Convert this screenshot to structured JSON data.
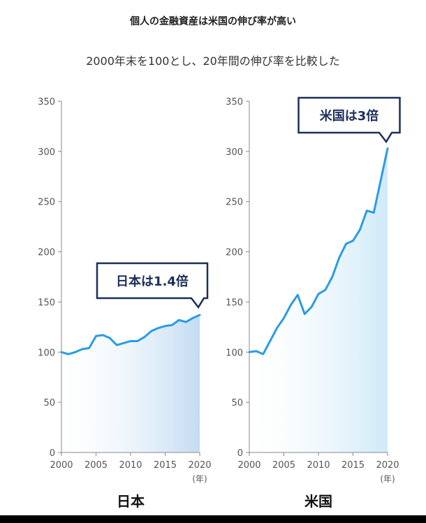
{
  "title": "個人の金融資産は米国の伸び率が高い",
  "subtitle": "2000年末を100とし、20年間の伸び率を比較した",
  "unit_note": "(年)",
  "colors": {
    "line": "#2b9be6",
    "callout_border": "#1b2f5a",
    "fill_japan": "#c3dcf2",
    "fill_us": "#cfeaf8"
  },
  "chart_data": [
    {
      "type": "area",
      "name": "日本",
      "callout": "日本は1.4倍",
      "x": [
        2000,
        2001,
        2002,
        2003,
        2004,
        2005,
        2006,
        2007,
        2008,
        2009,
        2010,
        2011,
        2012,
        2013,
        2014,
        2015,
        2016,
        2017,
        2018,
        2019,
        2020
      ],
      "values": [
        100,
        98,
        100,
        103,
        104,
        116,
        117,
        114,
        107,
        109,
        111,
        111,
        115,
        121,
        124,
        126,
        127,
        132,
        130,
        134,
        137
      ],
      "xticks": [
        "2000",
        "2005",
        "2010",
        "2015",
        "2020"
      ],
      "yticks": [
        "0",
        "50",
        "100",
        "150",
        "200",
        "250",
        "300",
        "350"
      ],
      "xlim": [
        2000,
        2020
      ],
      "ylim": [
        0,
        350
      ],
      "grid": false
    },
    {
      "type": "area",
      "name": "米国",
      "callout": "米国は3倍",
      "x": [
        2000,
        2001,
        2002,
        2003,
        2004,
        2005,
        2006,
        2007,
        2008,
        2009,
        2010,
        2011,
        2012,
        2013,
        2014,
        2015,
        2016,
        2017,
        2018,
        2019,
        2020
      ],
      "values": [
        100,
        101,
        98,
        111,
        124,
        134,
        147,
        157,
        138,
        145,
        158,
        162,
        175,
        194,
        208,
        211,
        222,
        241,
        239,
        271,
        303
      ],
      "xticks": [
        "2000",
        "2005",
        "2010",
        "2015",
        "2020"
      ],
      "yticks": [
        "0",
        "50",
        "100",
        "150",
        "200",
        "250",
        "300",
        "350"
      ],
      "xlim": [
        2000,
        2020
      ],
      "ylim": [
        0,
        350
      ],
      "grid": false
    }
  ]
}
